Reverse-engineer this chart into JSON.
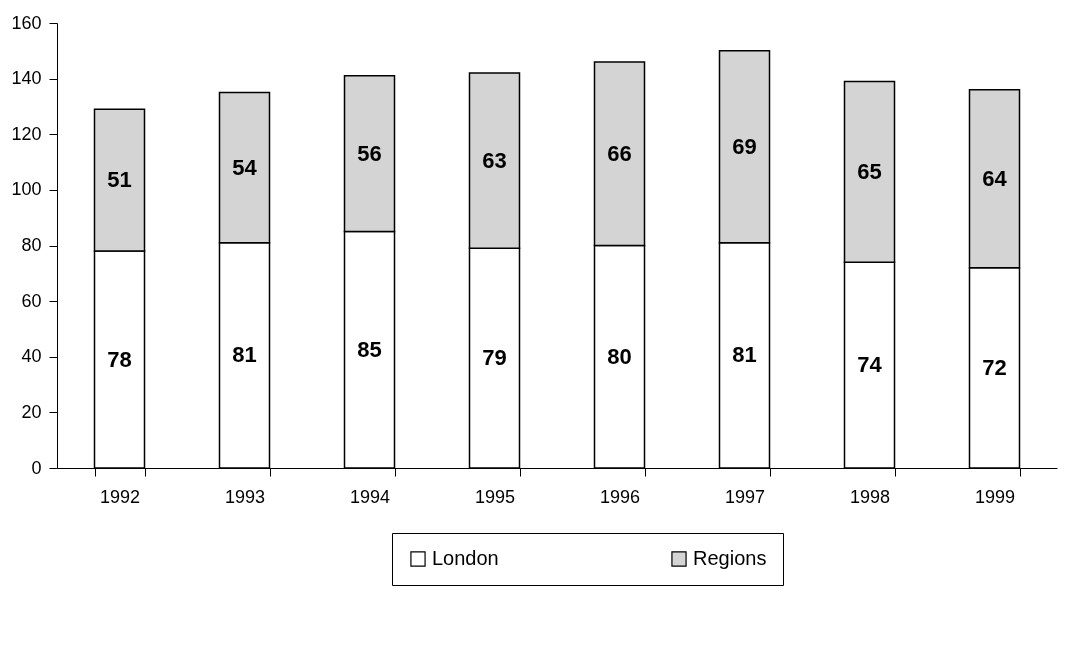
{
  "chart_data": {
    "type": "bar",
    "stacked": true,
    "categories": [
      "1992",
      "1993",
      "1994",
      "1995",
      "1996",
      "1997",
      "1998",
      "1999"
    ],
    "series": [
      {
        "name": "London",
        "color": "#ffffff",
        "values": [
          78,
          81,
          85,
          79,
          80,
          81,
          74,
          72
        ]
      },
      {
        "name": "Regions",
        "color": "#d4d4d4",
        "values": [
          51,
          54,
          56,
          63,
          66,
          69,
          65,
          64
        ]
      }
    ],
    "ylim": [
      0,
      160
    ],
    "yticks": [
      0,
      20,
      40,
      60,
      80,
      100,
      120,
      140,
      160
    ],
    "data_labels": true,
    "legend": "bottom",
    "grid": false
  }
}
